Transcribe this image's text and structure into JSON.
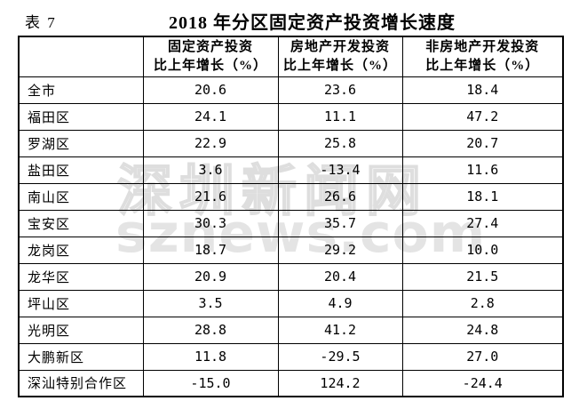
{
  "table_label": "表 7",
  "title": "2018 年分区固定资产投资增长速度",
  "watermark": {
    "line1": "深圳新闻网",
    "line2": "sznews.com",
    "color": "#e4e4e4"
  },
  "colors": {
    "border": "#000000",
    "text": "#000000",
    "background": "#ffffff"
  },
  "table": {
    "columns": [
      {
        "line1": "",
        "line2": ""
      },
      {
        "line1": "固定资产投资",
        "line2": "比上年增长（%）"
      },
      {
        "line1": "房地产开发投资",
        "line2": "比上年增长（%）"
      },
      {
        "line1": "非房地产开发投资",
        "line2": "比上年增长（%）"
      }
    ],
    "rows": [
      {
        "district": "全市",
        "values": [
          "20.6",
          "23.6",
          "18.4"
        ]
      },
      {
        "district": "福田区",
        "values": [
          "24.1",
          "11.1",
          "47.2"
        ]
      },
      {
        "district": "罗湖区",
        "values": [
          "22.9",
          "25.8",
          "20.7"
        ]
      },
      {
        "district": "盐田区",
        "values": [
          "3.6",
          "-13.4",
          "11.6"
        ]
      },
      {
        "district": "南山区",
        "values": [
          "21.6",
          "26.6",
          "18.1"
        ]
      },
      {
        "district": "宝安区",
        "values": [
          "30.3",
          "35.7",
          "27.4"
        ]
      },
      {
        "district": "龙岗区",
        "values": [
          "18.7",
          "29.2",
          "10.0"
        ]
      },
      {
        "district": "龙华区",
        "values": [
          "20.9",
          "20.4",
          "21.5"
        ]
      },
      {
        "district": "坪山区",
        "values": [
          "3.5",
          "4.9",
          "2.8"
        ]
      },
      {
        "district": "光明区",
        "values": [
          "28.8",
          "41.2",
          "24.8"
        ]
      },
      {
        "district": "大鹏新区",
        "values": [
          "11.8",
          "-29.5",
          "27.0"
        ]
      },
      {
        "district": "深汕特别合作区",
        "values": [
          "-15.0",
          "124.2",
          "-24.4"
        ]
      }
    ]
  }
}
